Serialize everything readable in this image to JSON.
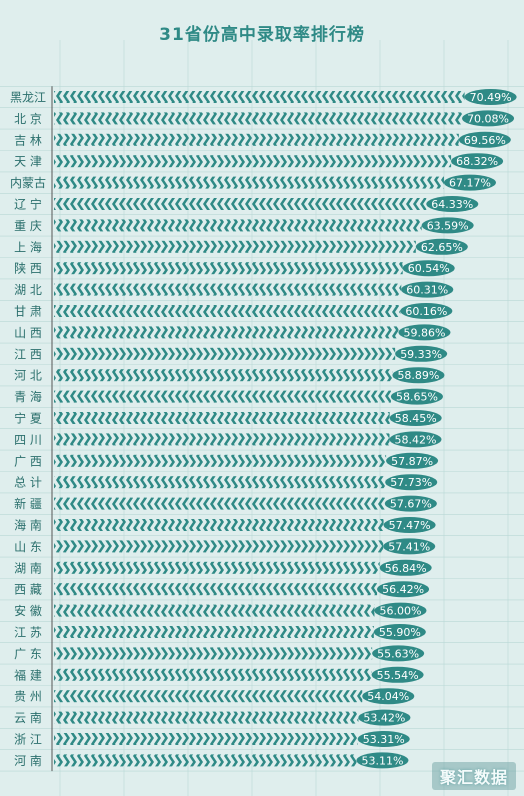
{
  "watermark": "聚汇数据",
  "colors": {
    "background": "#dfeeed",
    "bar": "#2f8a86",
    "label_fill": "#2f8a86",
    "label_text": "#ffffff",
    "category_text": "#2a6f6c",
    "grid": "#b9d8d6"
  },
  "chart_data": {
    "type": "bar",
    "orientation": "horizontal",
    "title": "31省份高中录取率排行榜",
    "xlabel": "",
    "ylabel": "",
    "categories": [
      "黑龙江",
      "北 京",
      "吉 林",
      "天 津",
      "内蒙古",
      "辽 宁",
      "重 庆",
      "上 海",
      "陕 西",
      "湖 北",
      "甘 肃",
      "山 西",
      "江 西",
      "河 北",
      "青 海",
      "宁 夏",
      "四 川",
      "广 西",
      "总 计",
      "新 疆",
      "海 南",
      "山 东",
      "湖 南",
      "西 藏",
      "安 徽",
      "江 苏",
      "广 东",
      "福 建",
      "贵 州",
      "云 南",
      "浙 江",
      "河 南"
    ],
    "values": [
      70.49,
      70.08,
      69.56,
      68.32,
      67.17,
      64.33,
      63.59,
      62.65,
      60.54,
      60.31,
      60.16,
      59.86,
      59.33,
      58.89,
      58.65,
      58.45,
      58.42,
      57.87,
      57.73,
      57.67,
      57.47,
      57.41,
      56.84,
      56.42,
      56.0,
      55.9,
      55.63,
      55.54,
      54.04,
      53.42,
      53.31,
      53.11
    ],
    "value_labels": [
      "70.49%",
      "70.08%",
      "69.56%",
      "68.32%",
      "67.17%",
      "64.33%",
      "63.59%",
      "62.65%",
      "60.54%",
      "60.31%",
      "60.16%",
      "59.86%",
      "59.33%",
      "58.89%",
      "58.65%",
      "58.45%",
      "58.42%",
      "57.87%",
      "57.73%",
      "57.67%",
      "57.47%",
      "57.41%",
      "56.84%",
      "56.42%",
      "56.00%",
      "55.90%",
      "55.63%",
      "55.54%",
      "54.04%",
      "53.42%",
      "53.31%",
      "53.11%"
    ],
    "xlim": [
      0,
      72
    ],
    "grid": true,
    "legend": "none"
  }
}
